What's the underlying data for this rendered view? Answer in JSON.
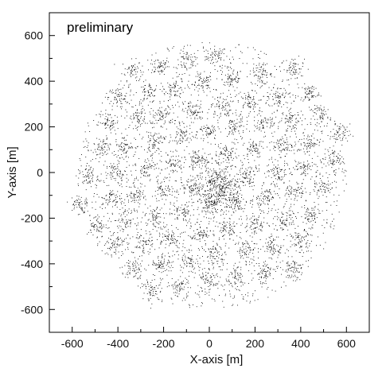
{
  "chart_data": {
    "type": "scatter",
    "annotation": "preliminary",
    "xlabel": "X-axis [m]",
    "ylabel": "Y-axis [m]",
    "xlim": [
      -700,
      700
    ],
    "ylim": [
      -700,
      700
    ],
    "x_ticks": [
      -600,
      -400,
      -200,
      0,
      200,
      400,
      600
    ],
    "y_ticks": [
      -600,
      -400,
      -200,
      0,
      200,
      400,
      600
    ],
    "grid": false,
    "legend": "none",
    "point_color": "#000000",
    "clusters": [
      {
        "x": 30,
        "y": 510
      },
      {
        "x": -100,
        "y": 490
      },
      {
        "x": -220,
        "y": 470
      },
      {
        "x": -340,
        "y": 450
      },
      {
        "x": 370,
        "y": 460
      },
      {
        "x": 230,
        "y": 430
      },
      {
        "x": 100,
        "y": 410
      },
      {
        "x": -30,
        "y": 390
      },
      {
        "x": -150,
        "y": 370
      },
      {
        "x": -270,
        "y": 350
      },
      {
        "x": -400,
        "y": 330
      },
      {
        "x": 440,
        "y": 350
      },
      {
        "x": 300,
        "y": 330
      },
      {
        "x": 170,
        "y": 310
      },
      {
        "x": 50,
        "y": 290
      },
      {
        "x": -70,
        "y": 270
      },
      {
        "x": -200,
        "y": 250
      },
      {
        "x": -320,
        "y": 240
      },
      {
        "x": -440,
        "y": 220
      },
      {
        "x": 490,
        "y": 250
      },
      {
        "x": 360,
        "y": 230
      },
      {
        "x": 240,
        "y": 210
      },
      {
        "x": 110,
        "y": 200
      },
      {
        "x": 0,
        "y": 180
      },
      {
        "x": -120,
        "y": 160
      },
      {
        "x": -240,
        "y": 140
      },
      {
        "x": -370,
        "y": 120
      },
      {
        "x": -480,
        "y": 100
      },
      {
        "x": 570,
        "y": 170
      },
      {
        "x": 430,
        "y": 130
      },
      {
        "x": 320,
        "y": 120
      },
      {
        "x": 190,
        "y": 110
      },
      {
        "x": 80,
        "y": 80
      },
      {
        "x": -50,
        "y": 60
      },
      {
        "x": -160,
        "y": 40
      },
      {
        "x": -280,
        "y": 20
      },
      {
        "x": -410,
        "y": 0
      },
      {
        "x": -530,
        "y": -20
      },
      {
        "x": 540,
        "y": 60
      },
      {
        "x": 410,
        "y": 20
      },
      {
        "x": 290,
        "y": 0
      },
      {
        "x": 160,
        "y": -20
      },
      {
        "x": 40,
        "y": -40
      },
      {
        "x": -80,
        "y": -60
      },
      {
        "x": -200,
        "y": -70
      },
      {
        "x": -320,
        "y": -90
      },
      {
        "x": -440,
        "y": -110
      },
      {
        "x": -570,
        "y": -140
      },
      {
        "x": 500,
        "y": -60
      },
      {
        "x": 370,
        "y": -90
      },
      {
        "x": 250,
        "y": -110
      },
      {
        "x": 120,
        "y": -130
      },
      {
        "x": 0,
        "y": -150
      },
      {
        "x": -120,
        "y": -170
      },
      {
        "x": -240,
        "y": -190
      },
      {
        "x": -370,
        "y": -210
      },
      {
        "x": -490,
        "y": -230
      },
      {
        "x": 440,
        "y": -190
      },
      {
        "x": 330,
        "y": -210
      },
      {
        "x": 200,
        "y": -230
      },
      {
        "x": 80,
        "y": -250
      },
      {
        "x": -40,
        "y": -270
      },
      {
        "x": -170,
        "y": -290
      },
      {
        "x": -290,
        "y": -310
      },
      {
        "x": -410,
        "y": -320
      },
      {
        "x": 400,
        "y": -300
      },
      {
        "x": 280,
        "y": -320
      },
      {
        "x": 160,
        "y": -340
      },
      {
        "x": 30,
        "y": -360
      },
      {
        "x": -90,
        "y": -380
      },
      {
        "x": -210,
        "y": -400
      },
      {
        "x": -330,
        "y": -420
      },
      {
        "x": 360,
        "y": -420
      },
      {
        "x": 240,
        "y": -440
      },
      {
        "x": 110,
        "y": -460
      },
      {
        "x": -10,
        "y": -480
      },
      {
        "x": -130,
        "y": -500
      },
      {
        "x": -250,
        "y": -520
      }
    ],
    "core": {
      "x": 40,
      "y": -70
    }
  }
}
